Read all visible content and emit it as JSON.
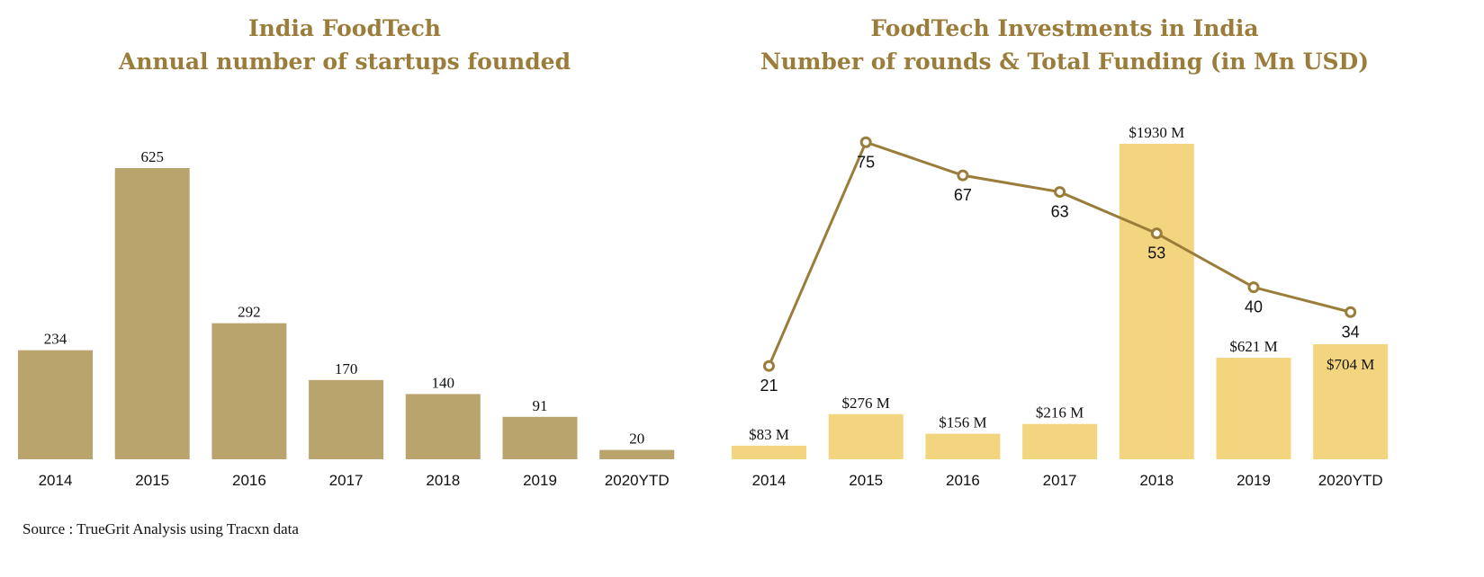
{
  "source_note": "Source : TrueGrit Analysis using Tracxn data",
  "chart_data": [
    {
      "type": "bar",
      "title": [
        "India FoodTech",
        "Annual number of startups founded"
      ],
      "categories": [
        "2014",
        "2015",
        "2016",
        "2017",
        "2018",
        "2019",
        "2020YTD"
      ],
      "values": [
        234,
        625,
        292,
        170,
        140,
        91,
        20
      ],
      "data_labels": [
        "234",
        "625",
        "292",
        "170",
        "140",
        "91",
        "20"
      ],
      "ylim": [
        0,
        625
      ],
      "grid": false,
      "colors": {
        "bar": "#b9a46d",
        "title": "#9a7d3a"
      }
    },
    {
      "type": "bar+line",
      "title": [
        "FoodTech Investments in India",
        "Number of rounds & Total Funding (in Mn USD)"
      ],
      "categories": [
        "2014",
        "2015",
        "2016",
        "2017",
        "2018",
        "2019",
        "2020YTD"
      ],
      "series": [
        {
          "type": "bar",
          "values": [
            83,
            276,
            156,
            216,
            1930,
            621,
            704
          ],
          "data_labels": [
            "$83 M",
            "$276 M",
            "$156 M",
            "$216 M",
            "$1930 M",
            "$621 M",
            "$704 M"
          ]
        },
        {
          "type": "line",
          "values": [
            21,
            75,
            67,
            63,
            53,
            40,
            34
          ],
          "data_labels": [
            "21",
            "75",
            "67",
            "63",
            "53",
            "40",
            "34"
          ]
        }
      ],
      "grid": false,
      "colors": {
        "bar": "#f3d580",
        "line": "#9a7d3a",
        "title": "#9a7d3a"
      }
    }
  ]
}
